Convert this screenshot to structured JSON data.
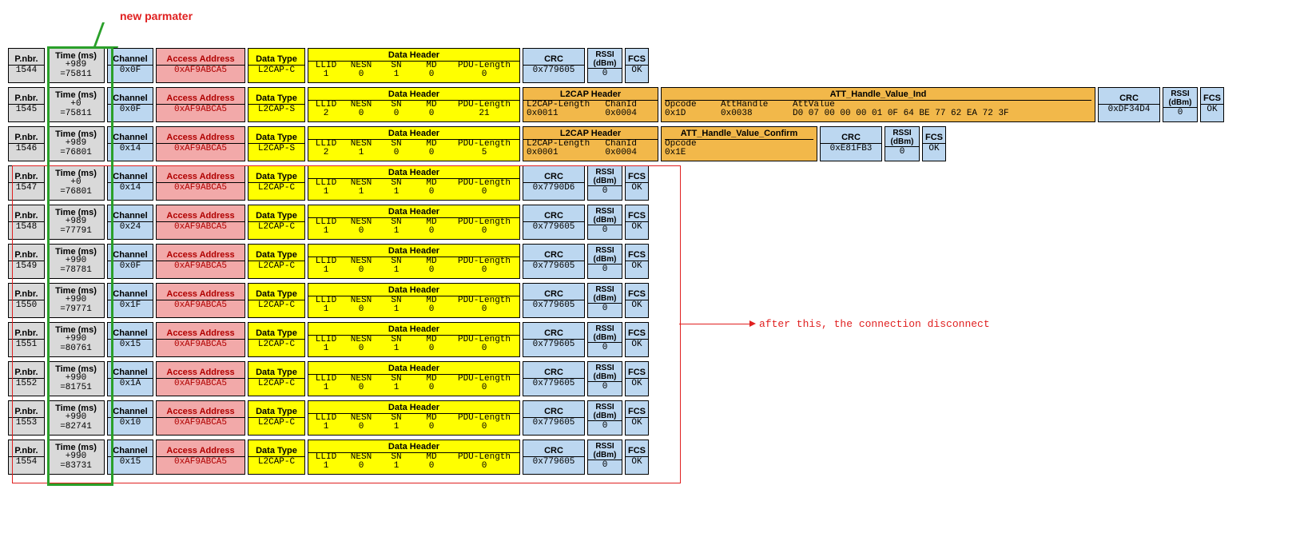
{
  "annotations": {
    "new_param": "new parmater",
    "after_disconnect": "after this, the connection disconnect"
  },
  "colors": {
    "grey": "#d9d9d9",
    "blue": "#bcd7f0",
    "pink": "#f2a9a9",
    "yellow": "#ffff00",
    "orange": "#f2b84a",
    "red_text": "#b00000",
    "annot_red": "#e02020",
    "annot_green": "#2aa02a",
    "border": "#000000",
    "background": "#ffffff"
  },
  "labels": {
    "pnbr": "P.nbr.",
    "time": "Time (ms)",
    "channel": "Channel",
    "addr": "Access Address",
    "dtype": "Data Type",
    "dheader": "Data Header",
    "dh_cols": [
      "LLID",
      "NESN",
      "SN",
      "MD",
      "PDU-Length"
    ],
    "crc": "CRC",
    "rssi": "RSSI (dBm)",
    "fcs": "FCS",
    "l2cap": "L2CAP Header",
    "l2cap_cols": [
      "L2CAP-Length",
      "ChanId"
    ],
    "att_ind": "ATT_Handle_Value_Ind",
    "att_ind_cols": [
      "Opcode",
      "AttHandle",
      "AttValue"
    ],
    "att_conf": "ATT_Handle_Value_Confirm",
    "att_conf_cols": [
      "Opcode"
    ]
  },
  "rows": [
    {
      "type": "basic",
      "pnbr": "1544",
      "time_delta": "+989",
      "time_eq": "=75811",
      "chan": "0x0F",
      "addr": "0xAF9ABCA5",
      "dtype": "L2CAP-C",
      "dh": [
        "1",
        "0",
        "1",
        "0",
        "0"
      ],
      "crc": "0x779605",
      "rssi": "0",
      "fcs": "OK"
    },
    {
      "type": "att_ind",
      "pnbr": "1545",
      "time_delta": "+0",
      "time_eq": "=75811",
      "chan": "0x0F",
      "addr": "0xAF9ABCA5",
      "dtype": "L2CAP-S",
      "dh": [
        "2",
        "0",
        "0",
        "0",
        "21"
      ],
      "l2_len": "0x0011",
      "l2_cid": "0x0004",
      "att_op": "0x1D",
      "att_handle": "0x0038",
      "att_val": "D0 07 00 00 00 01 0F 64 BE 77 62 EA 72 3F",
      "crc": "0xDF34D4",
      "rssi": "0",
      "fcs": "OK"
    },
    {
      "type": "att_conf",
      "pnbr": "1546",
      "time_delta": "+989",
      "time_eq": "=76801",
      "chan": "0x14",
      "addr": "0xAF9ABCA5",
      "dtype": "L2CAP-S",
      "dh": [
        "2",
        "1",
        "0",
        "0",
        "5"
      ],
      "l2_len": "0x0001",
      "l2_cid": "0x0004",
      "att_op": "0x1E",
      "crc": "0xE81FB3",
      "rssi": "0",
      "fcs": "OK"
    },
    {
      "type": "basic",
      "pnbr": "1547",
      "time_delta": "+0",
      "time_eq": "=76801",
      "chan": "0x14",
      "addr": "0xAF9ABCA5",
      "dtype": "L2CAP-C",
      "dh": [
        "1",
        "1",
        "1",
        "0",
        "0"
      ],
      "crc": "0x7790D6",
      "rssi": "0",
      "fcs": "OK"
    },
    {
      "type": "basic",
      "pnbr": "1548",
      "time_delta": "+989",
      "time_eq": "=77791",
      "chan": "0x24",
      "addr": "0xAF9ABCA5",
      "dtype": "L2CAP-C",
      "dh": [
        "1",
        "0",
        "1",
        "0",
        "0"
      ],
      "crc": "0x779605",
      "rssi": "0",
      "fcs": "OK"
    },
    {
      "type": "basic",
      "pnbr": "1549",
      "time_delta": "+990",
      "time_eq": "=78781",
      "chan": "0x0F",
      "addr": "0xAF9ABCA5",
      "dtype": "L2CAP-C",
      "dh": [
        "1",
        "0",
        "1",
        "0",
        "0"
      ],
      "crc": "0x779605",
      "rssi": "0",
      "fcs": "OK"
    },
    {
      "type": "basic",
      "pnbr": "1550",
      "time_delta": "+990",
      "time_eq": "=79771",
      "chan": "0x1F",
      "addr": "0xAF9ABCA5",
      "dtype": "L2CAP-C",
      "dh": [
        "1",
        "0",
        "1",
        "0",
        "0"
      ],
      "crc": "0x779605",
      "rssi": "0",
      "fcs": "OK"
    },
    {
      "type": "basic",
      "pnbr": "1551",
      "time_delta": "+990",
      "time_eq": "=80761",
      "chan": "0x15",
      "addr": "0xAF9ABCA5",
      "dtype": "L2CAP-C",
      "dh": [
        "1",
        "0",
        "1",
        "0",
        "0"
      ],
      "crc": "0x779605",
      "rssi": "0",
      "fcs": "OK"
    },
    {
      "type": "basic",
      "pnbr": "1552",
      "time_delta": "+990",
      "time_eq": "=81751",
      "chan": "0x1A",
      "addr": "0xAF9ABCA5",
      "dtype": "L2CAP-C",
      "dh": [
        "1",
        "0",
        "1",
        "0",
        "0"
      ],
      "crc": "0x779605",
      "rssi": "0",
      "fcs": "OK"
    },
    {
      "type": "basic",
      "pnbr": "1553",
      "time_delta": "+990",
      "time_eq": "=82741",
      "chan": "0x10",
      "addr": "0xAF9ABCA5",
      "dtype": "L2CAP-C",
      "dh": [
        "1",
        "0",
        "1",
        "0",
        "0"
      ],
      "crc": "0x779605",
      "rssi": "0",
      "fcs": "OK"
    },
    {
      "type": "basic",
      "pnbr": "1554",
      "time_delta": "+990",
      "time_eq": "=83731",
      "chan": "0x15",
      "addr": "0xAF9ABCA5",
      "dtype": "L2CAP-C",
      "dh": [
        "1",
        "0",
        "1",
        "0",
        "0"
      ],
      "crc": "0x779605",
      "rssi": "0",
      "fcs": "OK"
    }
  ]
}
